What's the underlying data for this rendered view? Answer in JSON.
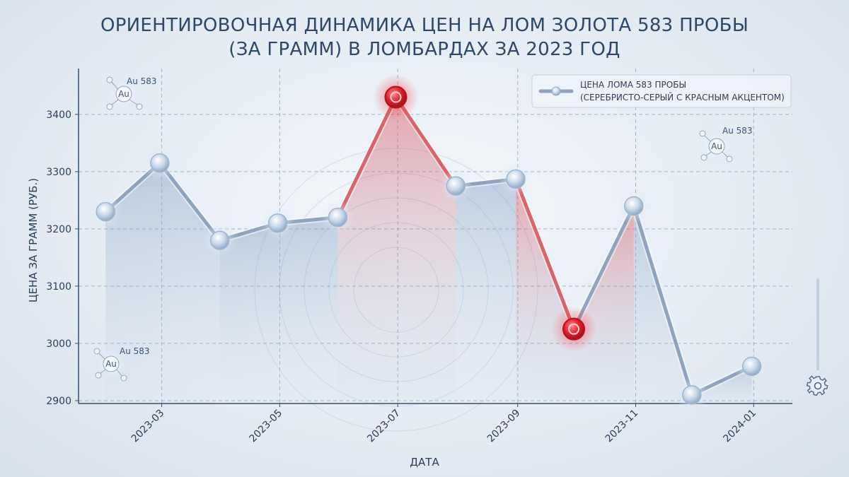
{
  "chart_data": {
    "type": "line",
    "title": "ОРИЕНТИРОВОЧНАЯ ДИНАМИКА ЦЕН НА ЛОМ ЗОЛОТА 583 ПРОБЫ",
    "subtitle": "(ЗА ГРАММ) В ЛОМБАРДАХ ЗА 2023 ГОД",
    "xlabel": "ДАТА",
    "ylabel": "ЦЕНА ЗА ГРАММ (РУБ.)",
    "ylim": [
      2895,
      3480
    ],
    "xlim": [
      "2023-01-17",
      "2024-01-21"
    ],
    "x_ticks": [
      "2023-03",
      "2023-05",
      "2023-07",
      "2023-09",
      "2023-11",
      "2024-01"
    ],
    "y_ticks": [
      2900,
      3000,
      3100,
      3200,
      3300,
      3400
    ],
    "grid": true,
    "legend_position": "top-right",
    "legend": [
      "ЦЕНА ЛОМА 583 ПРОБЫ",
      "(СЕРЕБРИСТО-СЕРЫЙ С КРАСНЫМ АКЦЕНТОМ)"
    ],
    "series": [
      {
        "x": [
          "2023-01-31",
          "2023-02-28",
          "2023-03-31",
          "2023-04-30",
          "2023-05-31",
          "2023-06-30",
          "2023-07-31",
          "2023-08-31",
          "2023-09-30",
          "2023-10-31",
          "2023-11-30",
          "2023-12-31"
        ],
        "values": [
          3230,
          3315,
          3180,
          3210,
          3220,
          3430,
          3275,
          3287,
          3025,
          3240,
          2910,
          2960
        ],
        "highlight": [
          false,
          false,
          false,
          false,
          false,
          true,
          false,
          false,
          true,
          false,
          false,
          false
        ]
      }
    ],
    "colors": {
      "line": "#8fa5bf",
      "accent": "#e0212e",
      "grid": "#8aa6c8",
      "text": "#2a3f58",
      "title": "#2d4868"
    }
  },
  "badges": [
    {
      "label": "Au 583",
      "symbol": "Au"
    },
    {
      "label": "Au 583",
      "symbol": "Au"
    },
    {
      "label": "Au 583",
      "symbol": "Au"
    }
  ],
  "icons": {
    "settings": "gear-icon"
  }
}
